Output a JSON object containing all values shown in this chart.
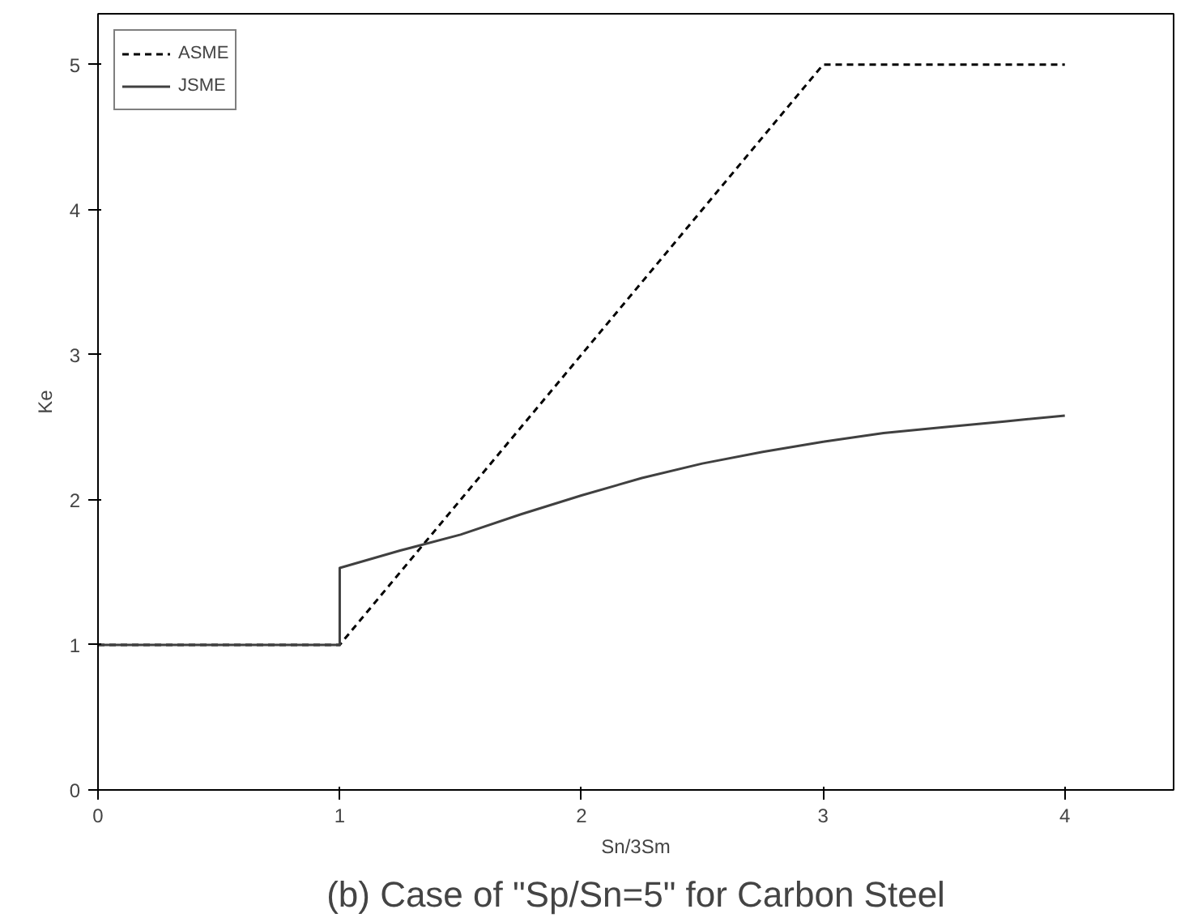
{
  "chart_data": {
    "type": "line",
    "title": "(b) Case of \"Sp/Sn=5\" for Carbon Steel",
    "xlabel": "Sn/3Sm",
    "ylabel": "Ke",
    "xlim": [
      0,
      4.45
    ],
    "ylim": [
      0,
      5.35
    ],
    "xticks": [
      0,
      1,
      2,
      3,
      4
    ],
    "yticks": [
      0,
      1,
      2,
      3,
      4,
      5
    ],
    "grid": false,
    "legend": "top left",
    "marker": "none",
    "series": [
      {
        "name": "ASME",
        "color": "#000000",
        "line_style": "dashed",
        "x": [
          0,
          1,
          3,
          4
        ],
        "values": [
          1,
          1,
          5,
          5
        ]
      },
      {
        "name": "JSME",
        "color": "#404040",
        "line_style": "solid",
        "x": [
          0,
          1,
          1,
          1.25,
          1.5,
          1.75,
          2,
          2.25,
          2.5,
          2.75,
          3,
          3.25,
          3.5,
          3.75,
          4
        ],
        "values": [
          1,
          1,
          1.53,
          1.65,
          1.76,
          1.9,
          2.03,
          2.15,
          2.25,
          2.33,
          2.4,
          2.46,
          2.5,
          2.54,
          2.58
        ]
      }
    ]
  }
}
